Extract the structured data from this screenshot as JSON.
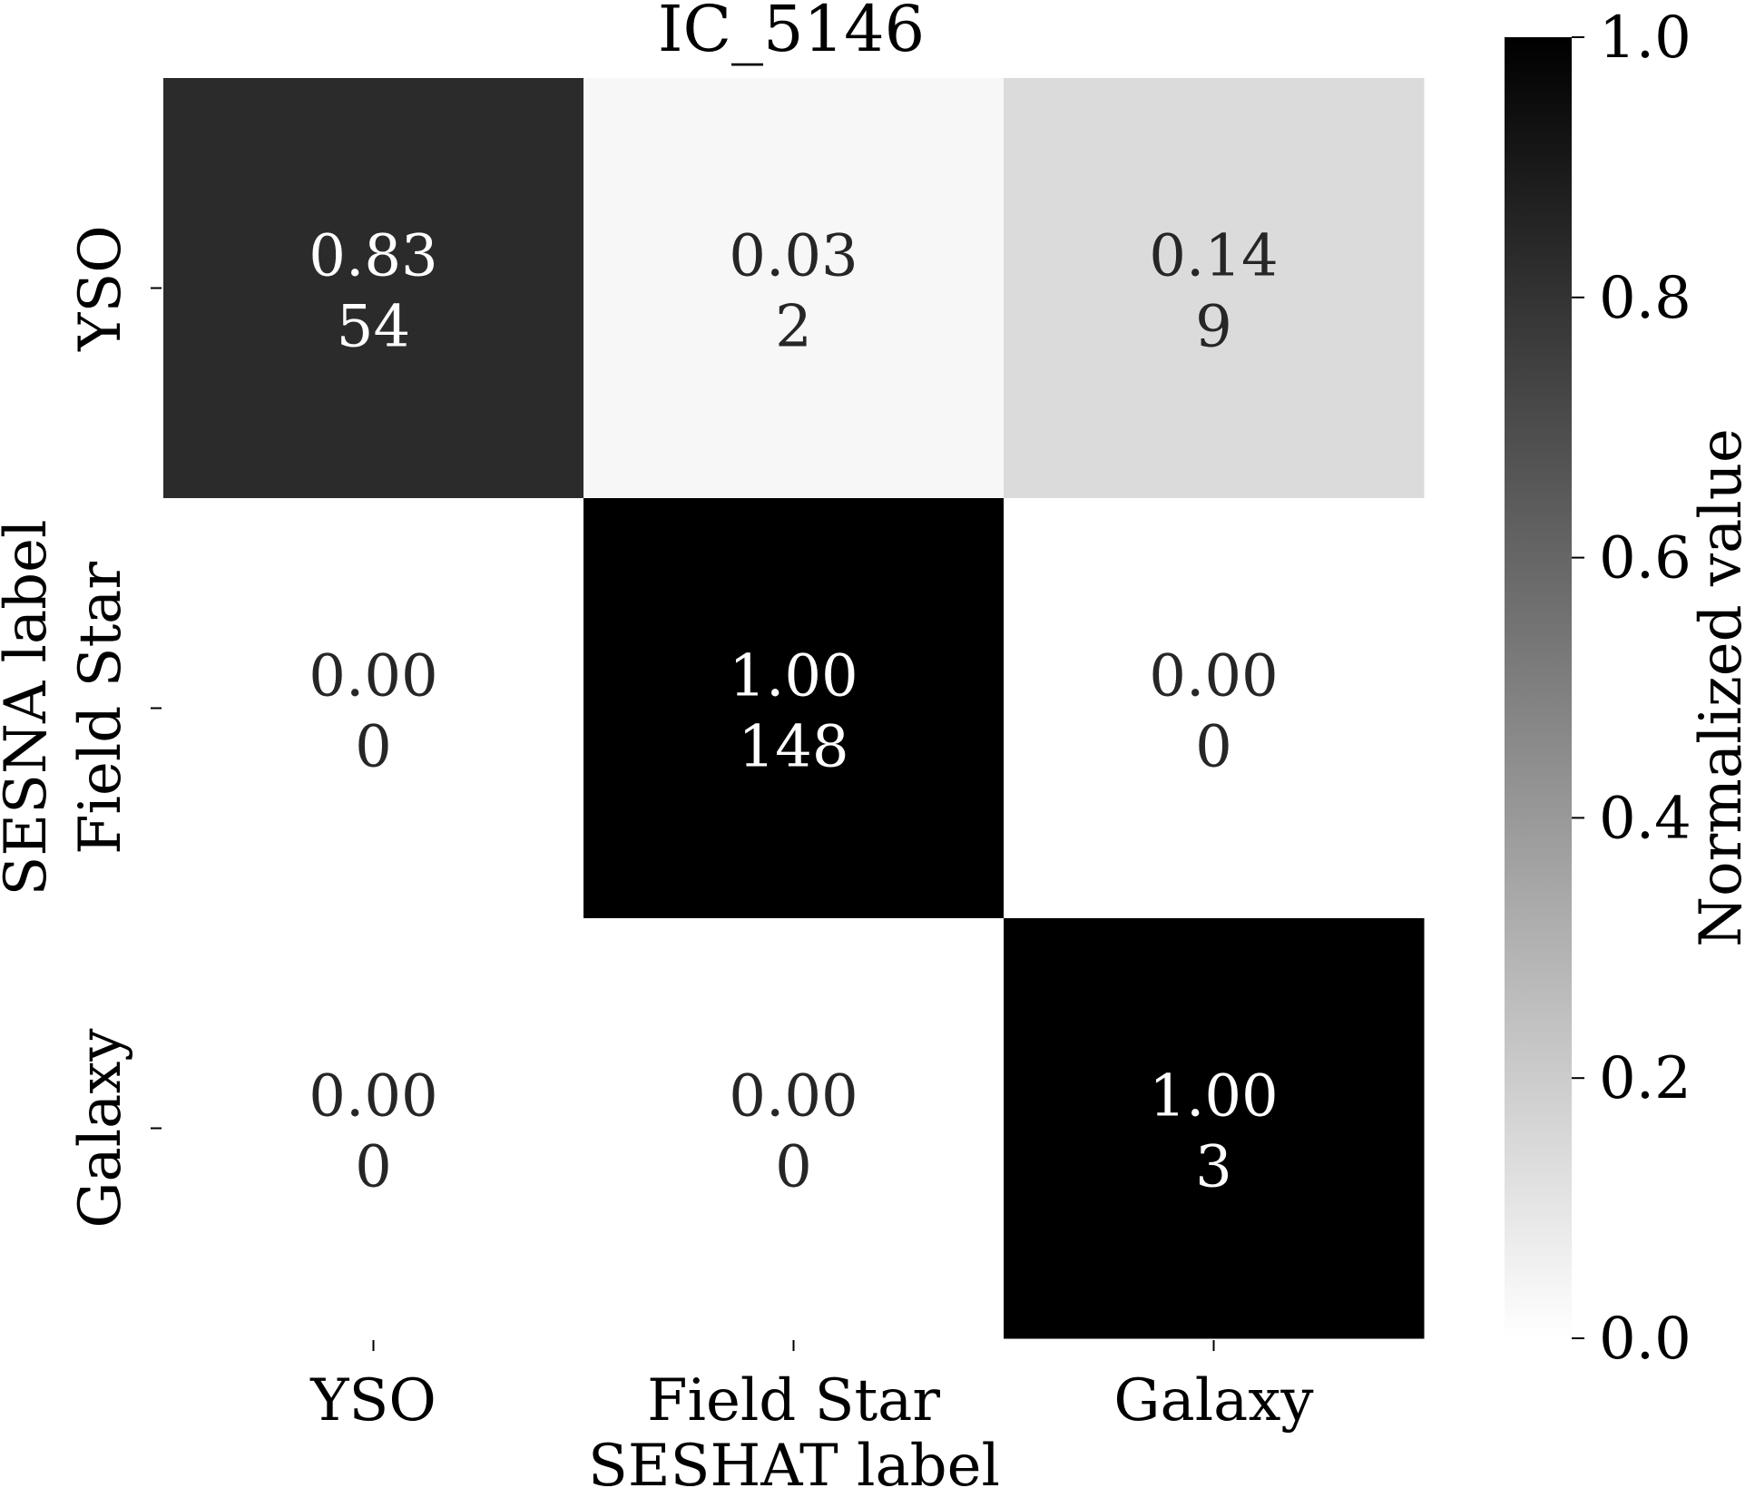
{
  "chart_data": {
    "type": "heatmap",
    "title": "IC_5146",
    "xlabel": "SESHAT label",
    "ylabel": "SESNA label",
    "x_categories": [
      "YSO",
      "Field Star",
      "Galaxy"
    ],
    "y_categories": [
      "YSO",
      "Field Star",
      "Galaxy"
    ],
    "normalized": [
      [
        0.83,
        0.03,
        0.14
      ],
      [
        0.0,
        1.0,
        0.0
      ],
      [
        0.0,
        0.0,
        1.0
      ]
    ],
    "normalized_labels": [
      [
        "0.83",
        "0.03",
        "0.14"
      ],
      [
        "0.00",
        "1.00",
        "0.00"
      ],
      [
        "0.00",
        "0.00",
        "1.00"
      ]
    ],
    "counts": [
      [
        54,
        2,
        9
      ],
      [
        0,
        148,
        0
      ],
      [
        0,
        0,
        3
      ]
    ],
    "colormap": "gray_r",
    "colorbar": {
      "label": "Normalized value",
      "range": [
        0.0,
        1.0
      ],
      "ticks": [
        0.0,
        0.2,
        0.4,
        0.6,
        0.8,
        1.0
      ],
      "tick_labels": [
        "0.0",
        "0.2",
        "0.4",
        "0.6",
        "0.8",
        "1.0"
      ]
    },
    "colors": {
      "low": "#ffffff",
      "high": "#000000",
      "text_dark": "#262626",
      "text_light": "#ffffff"
    }
  }
}
